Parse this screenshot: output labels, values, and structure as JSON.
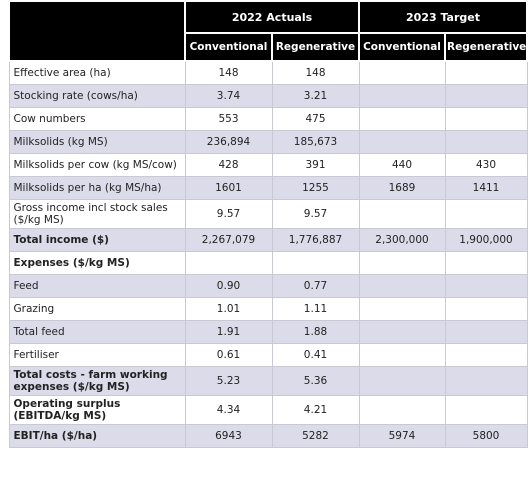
{
  "table": {
    "header": {
      "group_1": "2022 Actuals",
      "group_2": "2023 Target",
      "columns": [
        "Conventional",
        "Regenerative",
        "Conventional",
        "Regenerative"
      ]
    },
    "rows": [
      [
        "Effective area (ha)",
        "148",
        "148",
        null,
        null
      ],
      [
        "Stocking rate (cows/ha)",
        "3.74",
        "3.21",
        null,
        null
      ],
      [
        "Cow numbers",
        "553",
        "475",
        null,
        null
      ],
      [
        "Milksolids (kg MS)",
        "236,894",
        "185,673",
        null,
        null
      ],
      [
        "Milksolids per cow (kg MS/cow)",
        "428",
        "391",
        "440",
        "430"
      ],
      [
        "Milksolids per ha (kg MS/ha)",
        "1601",
        "1255",
        "1689",
        "1411"
      ],
      [
        "Gross income incl stock sales ($/kg MS)",
        "9.57",
        "9.57",
        null,
        null
      ],
      [
        "Total income ($)",
        "2,267,079",
        "1,776,887",
        "2,300,000",
        "1,900,000"
      ],
      [
        "Expenses ($/kg MS)",
        null,
        null,
        null,
        null
      ],
      [
        "Feed",
        "0.90",
        "0.77",
        null,
        null
      ],
      [
        "Grazing",
        "1.01",
        "1.11",
        null,
        null
      ],
      [
        "Total feed",
        "1.91",
        "1.88",
        null,
        null
      ],
      [
        "Fertiliser",
        "0.61",
        "0.41",
        null,
        null
      ],
      [
        "Total costs - farm working expenses ($/kg MS)",
        "5.23",
        "5.36",
        null,
        null
      ],
      [
        "Operating surplus (EBITDA/kg MS)",
        "4.34",
        "4.21",
        null,
        null
      ],
      [
        "EBIT/ha ($/ha)",
        "6943",
        "5282",
        "5974",
        "5800"
      ]
    ]
  }
}
